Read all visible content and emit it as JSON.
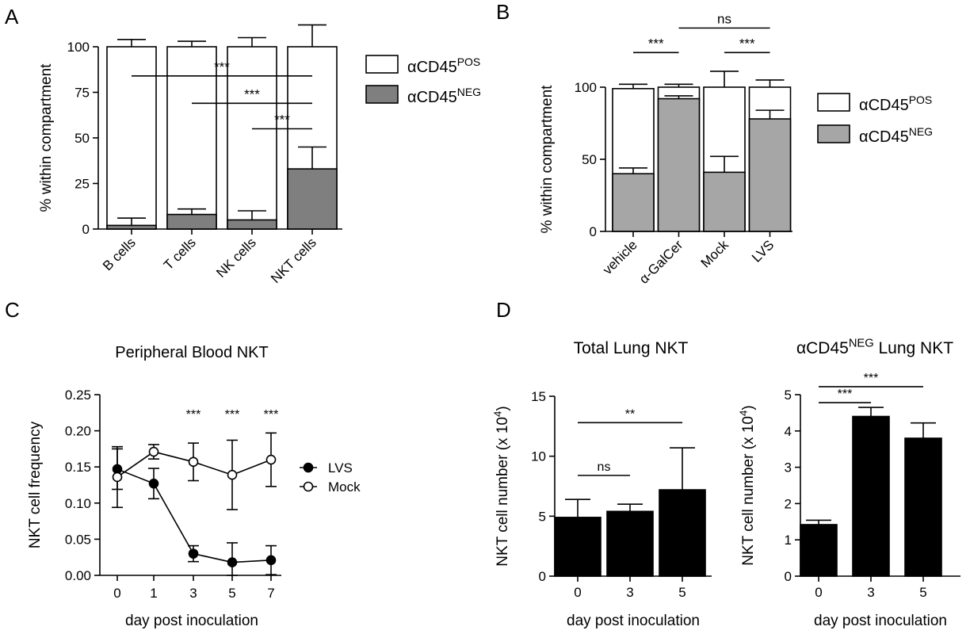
{
  "panel_labels": [
    "A",
    "B",
    "C",
    "D"
  ],
  "chart_data": [
    {
      "panel": "A",
      "type": "bar",
      "stacked": true,
      "title": "",
      "ylabel": "% within compartment",
      "xlabel": "",
      "ylim": [
        0,
        100
      ],
      "yticks": [
        "0",
        "25",
        "50",
        "75",
        "100"
      ],
      "categories": [
        "B cells",
        "T cells",
        "NK cells",
        "NKT cells"
      ],
      "series": [
        {
          "name": "αCD45NEG",
          "name_base": "αCD45",
          "name_sup": "NEG",
          "color": "#7f7f7f",
          "values": [
            2,
            8,
            5,
            33
          ],
          "errors": [
            4,
            3,
            5,
            12
          ]
        },
        {
          "name": "αCD45POS",
          "name_base": "αCD45",
          "name_sup": "POS",
          "color": "#ffffff",
          "values": [
            98,
            92,
            95,
            67
          ],
          "errors": [
            4,
            3,
            5,
            12
          ]
        }
      ],
      "legend": "right",
      "significance": [
        {
          "from": "B cells",
          "to": "NKT cells",
          "y": 84,
          "label": "***"
        },
        {
          "from": "T cells",
          "to": "NKT cells",
          "y": 69,
          "label": "***"
        },
        {
          "from": "NK cells",
          "to": "NKT cells",
          "y": 55,
          "label": "***"
        }
      ]
    },
    {
      "panel": "B",
      "type": "bar",
      "stacked": true,
      "title": "",
      "ylabel": "% within compartment",
      "xlabel": "",
      "ylim": [
        0,
        100
      ],
      "yticks": [
        "0",
        "50",
        "100"
      ],
      "categories": [
        "vehicle",
        "α-GalCer",
        "Mock",
        "LVS"
      ],
      "series": [
        {
          "name": "αCD45NEG",
          "name_base": "αCD45",
          "name_sup": "NEG",
          "color": "#a6a6a6",
          "values": [
            40,
            92,
            41,
            78
          ],
          "errors": [
            4,
            2,
            11,
            6
          ]
        },
        {
          "name": "αCD45POS",
          "name_base": "αCD45",
          "name_sup": "POS",
          "color": "#ffffff",
          "values": [
            59,
            8,
            59,
            22
          ],
          "errors": [
            3,
            2,
            11,
            5
          ]
        }
      ],
      "legend": "right",
      "significance": [
        {
          "from": "vehicle",
          "to": "α-GalCer",
          "y": 124,
          "label": "***"
        },
        {
          "from": "Mock",
          "to": "LVS",
          "y": 124,
          "label": "***"
        },
        {
          "from": "α-GalCer",
          "to": "LVS",
          "y": 141,
          "label": "ns"
        }
      ]
    },
    {
      "panel": "C",
      "type": "line",
      "title": "Peripheral Blood NKT",
      "xlabel": "day post inoculation",
      "ylabel": "NKT cell frequency",
      "ylim": [
        0,
        0.25
      ],
      "yticks": [
        "0.00",
        "0.05",
        "0.10",
        "0.15",
        "0.20",
        "0.25"
      ],
      "categories": [
        "0",
        "1",
        "3",
        "5",
        "7"
      ],
      "series": [
        {
          "name": "LVS",
          "marker": "filled",
          "values": [
            0.147,
            0.127,
            0.03,
            0.018,
            0.021
          ],
          "errors": [
            0.028,
            0.021,
            0.011,
            0.027,
            0.02
          ]
        },
        {
          "name": "Mock",
          "marker": "open",
          "values": [
            0.136,
            0.171,
            0.157,
            0.139,
            0.16
          ],
          "errors": [
            0.042,
            0.01,
            0.026,
            0.048,
            0.037
          ]
        }
      ],
      "legend": "right",
      "annotations": [
        {
          "x": "3",
          "label": "***"
        },
        {
          "x": "5",
          "label": "***"
        },
        {
          "x": "7",
          "label": "***"
        }
      ]
    },
    {
      "panel": "D",
      "type": "bar",
      "title": "Total  Lung NKT",
      "xlabel": "day post inoculation",
      "ylabel": "NKT cell number (x 104)",
      "ylabel_base": "NKT cell number (x 10",
      "ylabel_sup": "4",
      "ylabel_end": ")",
      "ylim": [
        0,
        15
      ],
      "yticks": [
        "0",
        "5",
        "10",
        "15"
      ],
      "categories": [
        "0",
        "3",
        "5"
      ],
      "values": [
        4.9,
        5.4,
        7.2
      ],
      "errors": [
        1.5,
        0.6,
        3.5
      ],
      "color": "#000000",
      "significance": [
        {
          "from": "0",
          "to": "3",
          "y": 8.4,
          "label": "ns"
        },
        {
          "from": "0",
          "to": "5",
          "y": 12.8,
          "label": "**"
        }
      ]
    },
    {
      "panel": "D",
      "type": "bar",
      "title": "αCD45NEG Lung NKT",
      "title_base": "αCD45",
      "title_sup": "NEG",
      "title_end": " Lung NKT",
      "xlabel": "day post inoculation",
      "ylabel": "NKT cell number (x 104)",
      "ylabel_base": "NKT cell number (x 10",
      "ylabel_sup": "4",
      "ylabel_end": ")",
      "ylim": [
        0,
        5
      ],
      "yticks": [
        "0",
        "1",
        "2",
        "3",
        "4",
        "5"
      ],
      "categories": [
        "0",
        "3",
        "5"
      ],
      "values": [
        1.42,
        4.4,
        3.8
      ],
      "errors": [
        0.12,
        0.25,
        0.42
      ],
      "color": "#000000",
      "significance": [
        {
          "from": "0",
          "to": "3",
          "y": 4.78,
          "label": "***"
        },
        {
          "from": "0",
          "to": "5",
          "y": 5.22,
          "label": "***"
        }
      ]
    }
  ]
}
